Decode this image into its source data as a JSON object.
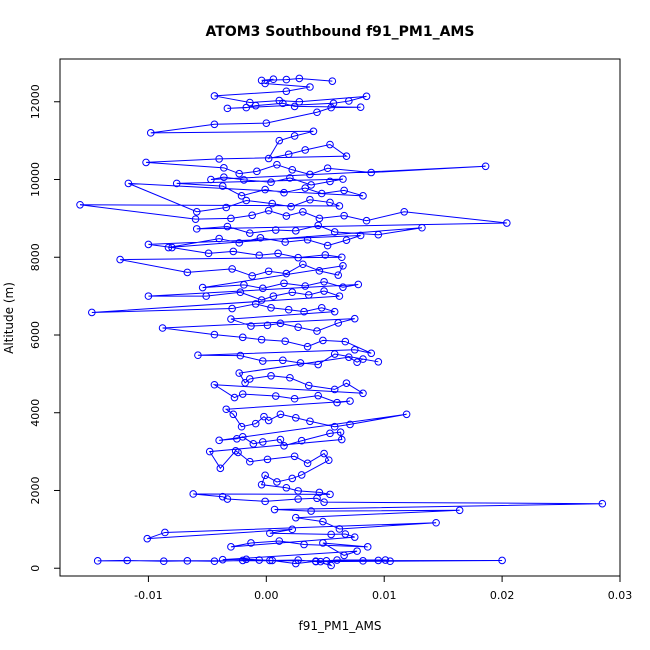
{
  "chart_data": {
    "type": "line",
    "title": "ATOM3 Southbound f91_PM1_AMS",
    "xlabel": "f91_PM1_AMS",
    "ylabel": "Altitude (m)",
    "xlim": [
      -0.0175,
      0.03
    ],
    "ylim": [
      -200,
      13100
    ],
    "x_ticks": [
      -0.01,
      0.0,
      0.01,
      0.02,
      0.03
    ],
    "x_tick_labels": [
      "-0.01",
      "0.00",
      "0.01",
      "0.02",
      "0.03"
    ],
    "y_ticks": [
      0,
      2000,
      4000,
      6000,
      8000,
      10000,
      12000
    ],
    "y_tick_labels": [
      "0",
      "2000",
      "4000",
      "6000",
      "8000",
      "10000",
      "12000"
    ],
    "grid": false,
    "series": [
      {
        "color": "#0000ff",
        "marker": "open-circle",
        "points": [
          [
            0.0082,
            190
          ],
          [
            0.0095,
            200
          ],
          [
            0.0105,
            180
          ],
          [
            0.0101,
            210
          ],
          [
            0.006,
            210
          ],
          [
            0.0042,
            170
          ],
          [
            0.0027,
            210
          ],
          [
            0.0003,
            200
          ],
          [
            -0.0006,
            210
          ],
          [
            -0.002,
            200
          ],
          [
            -0.0044,
            180
          ],
          [
            -0.0067,
            190
          ],
          [
            -0.0087,
            180
          ],
          [
            -0.0118,
            200
          ],
          [
            -0.0143,
            190
          ],
          [
            0.02,
            200
          ],
          [
            0.0046,
            170
          ],
          [
            0.0051,
            190
          ],
          [
            0.0055,
            70
          ],
          [
            0.0042,
            180
          ],
          [
            0.0025,
            120
          ],
          [
            0.0005,
            200
          ],
          [
            -0.0017,
            230
          ],
          [
            -0.0037,
            220
          ],
          [
            0.0077,
            440
          ],
          [
            0.0066,
            330
          ],
          [
            0.0048,
            650
          ],
          [
            0.0086,
            550
          ],
          [
            0.0032,
            610
          ],
          [
            0.0011,
            700
          ],
          [
            -0.0013,
            650
          ],
          [
            -0.003,
            550
          ],
          [
            0.0075,
            800
          ],
          [
            0.0067,
            880
          ],
          [
            0.0055,
            870
          ],
          [
            0.0003,
            900
          ],
          [
            0.0022,
            1000
          ],
          [
            -0.0101,
            760
          ],
          [
            -0.0086,
            920
          ],
          [
            0.0144,
            1170
          ],
          [
            0.0062,
            1010
          ],
          [
            0.0048,
            1200
          ],
          [
            0.0025,
            1300
          ],
          [
            0.0164,
            1490
          ],
          [
            0.0038,
            1470
          ],
          [
            0.0007,
            1510
          ],
          [
            0.0285,
            1660
          ],
          [
            0.0049,
            1700
          ],
          [
            0.0043,
            1800
          ],
          [
            0.0027,
            1780
          ],
          [
            -0.0001,
            1720
          ],
          [
            -0.0033,
            1780
          ],
          [
            -0.0037,
            1840
          ],
          [
            -0.0062,
            1910
          ],
          [
            0.0054,
            1900
          ],
          [
            0.0045,
            1950
          ],
          [
            0.0027,
            1990
          ],
          [
            0.0017,
            2070
          ],
          [
            -0.0004,
            2150
          ],
          [
            -0.0001,
            2390
          ],
          [
            0.0009,
            2220
          ],
          [
            0.0022,
            2310
          ],
          [
            0.003,
            2400
          ],
          [
            0.0053,
            2780
          ],
          [
            0.0049,
            2950
          ],
          [
            0.0035,
            2700
          ],
          [
            0.0024,
            2880
          ],
          [
            0.0001,
            2800
          ],
          [
            -0.0014,
            2740
          ],
          [
            -0.0024,
            2980
          ],
          [
            -0.0026,
            3020
          ],
          [
            -0.0039,
            2570
          ],
          [
            -0.0048,
            3000
          ],
          [
            0.0064,
            3310
          ],
          [
            0.0063,
            3500
          ],
          [
            0.0054,
            3470
          ],
          [
            0.003,
            3280
          ],
          [
            0.0015,
            3150
          ],
          [
            0.0012,
            3310
          ],
          [
            -0.0003,
            3250
          ],
          [
            -0.0011,
            3200
          ],
          [
            -0.002,
            3380
          ],
          [
            -0.0025,
            3330
          ],
          [
            -0.004,
            3290
          ],
          [
            0.0119,
            3960
          ],
          [
            0.0071,
            3700
          ],
          [
            0.0058,
            3640
          ],
          [
            0.0037,
            3780
          ],
          [
            0.0025,
            3870
          ],
          [
            0.0012,
            3960
          ],
          [
            0.0002,
            3800
          ],
          [
            -0.0002,
            3900
          ],
          [
            -0.0009,
            3720
          ],
          [
            -0.0021,
            3640
          ],
          [
            -0.0028,
            3960
          ],
          [
            -0.0034,
            4090
          ],
          [
            0.0071,
            4300
          ],
          [
            0.006,
            4260
          ],
          [
            0.0044,
            4440
          ],
          [
            0.0024,
            4360
          ],
          [
            0.0008,
            4430
          ],
          [
            -0.002,
            4480
          ],
          [
            -0.0027,
            4390
          ],
          [
            -0.0044,
            4720
          ],
          [
            0.0082,
            4500
          ],
          [
            0.0068,
            4760
          ],
          [
            0.0058,
            4600
          ],
          [
            0.0036,
            4700
          ],
          [
            0.002,
            4900
          ],
          [
            0.0004,
            4950
          ],
          [
            -0.0014,
            4870
          ],
          [
            -0.0018,
            4770
          ],
          [
            -0.0023,
            5020
          ],
          [
            0.007,
            5430
          ],
          [
            0.0077,
            5300
          ],
          [
            0.0082,
            5380
          ],
          [
            0.0095,
            5310
          ],
          [
            0.0058,
            5510
          ],
          [
            0.0044,
            5240
          ],
          [
            0.0029,
            5280
          ],
          [
            0.0014,
            5350
          ],
          [
            -0.0003,
            5330
          ],
          [
            -0.0022,
            5470
          ],
          [
            -0.0058,
            5480
          ],
          [
            0.0075,
            5620
          ],
          [
            0.0089,
            5530
          ],
          [
            0.0067,
            5830
          ],
          [
            0.0048,
            5860
          ],
          [
            0.0035,
            5700
          ],
          [
            0.0016,
            5840
          ],
          [
            -0.0004,
            5880
          ],
          [
            -0.002,
            5940
          ],
          [
            -0.0044,
            6010
          ],
          [
            -0.0088,
            6180
          ],
          [
            0.0075,
            6420
          ],
          [
            0.0061,
            6310
          ],
          [
            0.0043,
            6100
          ],
          [
            0.0027,
            6200
          ],
          [
            0.0012,
            6300
          ],
          [
            0.0001,
            6250
          ],
          [
            -0.0013,
            6230
          ],
          [
            -0.003,
            6410
          ],
          [
            0.0058,
            6600
          ],
          [
            0.0047,
            6700
          ],
          [
            0.0032,
            6600
          ],
          [
            0.0019,
            6650
          ],
          [
            0.0004,
            6700
          ],
          [
            -0.0009,
            6800
          ],
          [
            -0.0029,
            6680
          ],
          [
            -0.0148,
            6580
          ],
          [
            0.0062,
            7000
          ],
          [
            0.0049,
            7130
          ],
          [
            0.0036,
            7030
          ],
          [
            0.0022,
            7100
          ],
          [
            0.0006,
            7000
          ],
          [
            -0.0004,
            6900
          ],
          [
            -0.0022,
            7100
          ],
          [
            -0.0051,
            7000
          ],
          [
            -0.01,
            7000
          ],
          [
            0.0078,
            7300
          ],
          [
            0.0065,
            7230
          ],
          [
            0.0049,
            7370
          ],
          [
            0.0033,
            7260
          ],
          [
            0.0015,
            7330
          ],
          [
            -0.0003,
            7200
          ],
          [
            -0.0019,
            7290
          ],
          [
            -0.0054,
            7220
          ],
          [
            0.0065,
            7780
          ],
          [
            0.0061,
            7540
          ],
          [
            0.0045,
            7650
          ],
          [
            0.0031,
            7820
          ],
          [
            0.0017,
            7580
          ],
          [
            0.0002,
            7640
          ],
          [
            -0.0012,
            7520
          ],
          [
            -0.0029,
            7700
          ],
          [
            -0.0067,
            7610
          ],
          [
            -0.0124,
            7940
          ],
          [
            0.0064,
            8000
          ],
          [
            0.005,
            8060
          ],
          [
            0.0027,
            7990
          ],
          [
            0.001,
            8100
          ],
          [
            -0.0006,
            8050
          ],
          [
            -0.0028,
            8150
          ],
          [
            -0.0049,
            8100
          ],
          [
            -0.008,
            8250
          ],
          [
            -0.01,
            8330
          ],
          [
            0.008,
            8560
          ],
          [
            0.0068,
            8440
          ],
          [
            0.0052,
            8300
          ],
          [
            0.0035,
            8450
          ],
          [
            0.0016,
            8390
          ],
          [
            -0.0005,
            8500
          ],
          [
            -0.0023,
            8370
          ],
          [
            -0.004,
            8480
          ],
          [
            -0.0083,
            8250
          ],
          [
            0.0132,
            8760
          ],
          [
            0.0095,
            8580
          ],
          [
            0.0058,
            8650
          ],
          [
            0.0044,
            8820
          ],
          [
            0.0025,
            8680
          ],
          [
            0.0008,
            8700
          ],
          [
            -0.0014,
            8620
          ],
          [
            -0.0033,
            8790
          ],
          [
            -0.0059,
            8730
          ],
          [
            0.0204,
            8880
          ],
          [
            0.0117,
            9170
          ],
          [
            0.0085,
            8940
          ],
          [
            0.0066,
            9070
          ],
          [
            0.0045,
            9000
          ],
          [
            0.0031,
            9170
          ],
          [
            0.0017,
            9060
          ],
          [
            0.0002,
            9200
          ],
          [
            -0.0012,
            9080
          ],
          [
            -0.003,
            9000
          ],
          [
            -0.006,
            8980
          ],
          [
            -0.0158,
            9350
          ],
          [
            0.0062,
            9320
          ],
          [
            0.0054,
            9410
          ],
          [
            0.0037,
            9480
          ],
          [
            0.0021,
            9300
          ],
          [
            0.0005,
            9380
          ],
          [
            -0.0017,
            9460
          ],
          [
            -0.0034,
            9280
          ],
          [
            -0.0059,
            9170
          ],
          [
            -0.0117,
            9900
          ],
          [
            0.0082,
            9580
          ],
          [
            0.0066,
            9720
          ],
          [
            0.0047,
            9640
          ],
          [
            0.0033,
            9780
          ],
          [
            0.0015,
            9660
          ],
          [
            -0.0001,
            9740
          ],
          [
            -0.0021,
            9580
          ],
          [
            -0.0037,
            9830
          ],
          [
            -0.0076,
            9900
          ],
          [
            0.0065,
            10010
          ],
          [
            0.0054,
            9950
          ],
          [
            0.0038,
            9860
          ],
          [
            0.002,
            10040
          ],
          [
            0.0004,
            9930
          ],
          [
            -0.0019,
            9990
          ],
          [
            -0.0036,
            10060
          ],
          [
            -0.0047,
            10000
          ],
          [
            0.0186,
            10340
          ],
          [
            0.0089,
            10180
          ],
          [
            0.0052,
            10290
          ],
          [
            0.0037,
            10130
          ],
          [
            0.0022,
            10250
          ],
          [
            0.0009,
            10380
          ],
          [
            -0.0008,
            10210
          ],
          [
            -0.0023,
            10150
          ],
          [
            -0.0036,
            10300
          ],
          [
            -0.0102,
            10440
          ],
          [
            -0.004,
            10530
          ],
          [
            0.0068,
            10600
          ],
          [
            0.0054,
            10900
          ],
          [
            0.0033,
            10760
          ],
          [
            0.0019,
            10650
          ],
          [
            0.0002,
            10540
          ],
          [
            0.0011,
            11000
          ],
          [
            0.0024,
            11120
          ],
          [
            0.004,
            11240
          ],
          [
            -0.0098,
            11200
          ],
          [
            -0.0044,
            11420
          ],
          [
            0.0,
            11450
          ],
          [
            0.0043,
            11730
          ],
          [
            0.0055,
            11850
          ],
          [
            0.008,
            11860
          ],
          [
            0.0024,
            11880
          ],
          [
            0.0014,
            11960
          ],
          [
            -0.0009,
            11900
          ],
          [
            -0.0017,
            11850
          ],
          [
            -0.0033,
            11830
          ],
          [
            0.0057,
            11960
          ],
          [
            0.007,
            12020
          ],
          [
            0.0085,
            12140
          ],
          [
            0.0028,
            12000
          ],
          [
            0.0011,
            12030
          ],
          [
            -0.0014,
            11980
          ],
          [
            -0.0044,
            12150
          ],
          [
            0.0017,
            12270
          ],
          [
            0.0037,
            12380
          ],
          [
            -0.0001,
            12470
          ],
          [
            0.0006,
            12580
          ],
          [
            -0.0004,
            12550
          ],
          [
            0.0017,
            12570
          ],
          [
            0.0028,
            12600
          ],
          [
            0.0056,
            12530
          ]
        ]
      }
    ]
  }
}
